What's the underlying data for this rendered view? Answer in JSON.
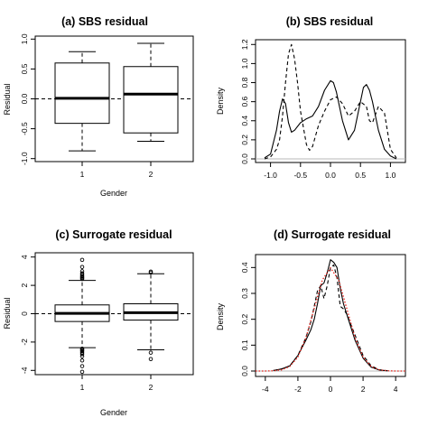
{
  "chart_data": [
    {
      "panel": "a",
      "type": "box",
      "title": "(a) SBS residual",
      "xlabel": "Gender",
      "ylabel": "Residual",
      "categories": [
        "1",
        "2"
      ],
      "ylim": [
        -1.05,
        1.05
      ],
      "yticks": [
        -1.0,
        -0.5,
        0.0,
        0.5,
        1.0
      ],
      "ytick_labels": [
        "-1.0",
        "-0.5",
        "0.0",
        "0.5",
        "1.0"
      ],
      "reference_line": 0,
      "boxes": [
        {
          "category": "1",
          "whisker_low": -0.87,
          "q1": -0.41,
          "median": 0.01,
          "q3": 0.6,
          "whisker_high": 0.79,
          "outliers": []
        },
        {
          "category": "2",
          "whisker_low": -0.71,
          "q1": -0.57,
          "median": 0.08,
          "q3": 0.54,
          "whisker_high": 0.93,
          "outliers": []
        }
      ]
    },
    {
      "panel": "b",
      "type": "line",
      "title": "(b) SBS residual",
      "xlabel": "",
      "ylabel": "Density",
      "xlim": [
        -1.25,
        1.25
      ],
      "ylim": [
        0,
        1.25
      ],
      "xticks": [
        -1.0,
        -0.5,
        0.0,
        0.5,
        1.0
      ],
      "xtick_labels": [
        "-1.0",
        "-0.5",
        "0.0",
        "0.5",
        "1.0"
      ],
      "yticks": [
        0.0,
        0.2,
        0.4,
        0.6,
        0.8,
        1.0,
        1.2
      ],
      "ytick_labels": [
        "0.0",
        "0.2",
        "0.4",
        "0.6",
        "0.8",
        "1.0",
        "1.2"
      ],
      "series": [
        {
          "style": "solid",
          "color": "#000000",
          "x": [
            -1.1,
            -1.0,
            -0.9,
            -0.85,
            -0.8,
            -0.75,
            -0.7,
            -0.65,
            -0.6,
            -0.5,
            -0.4,
            -0.3,
            -0.2,
            -0.1,
            0.0,
            0.05,
            0.1,
            0.2,
            0.3,
            0.4,
            0.5,
            0.55,
            0.6,
            0.65,
            0.7,
            0.8,
            0.9,
            1.0,
            1.1
          ],
          "y": [
            0.01,
            0.05,
            0.3,
            0.5,
            0.63,
            0.58,
            0.38,
            0.28,
            0.3,
            0.38,
            0.42,
            0.45,
            0.55,
            0.72,
            0.82,
            0.8,
            0.7,
            0.4,
            0.2,
            0.3,
            0.6,
            0.75,
            0.78,
            0.72,
            0.6,
            0.3,
            0.1,
            0.03,
            0.0
          ]
        },
        {
          "style": "dashed",
          "color": "#000000",
          "x": [
            -1.1,
            -1.0,
            -0.9,
            -0.85,
            -0.8,
            -0.75,
            -0.7,
            -0.65,
            -0.6,
            -0.55,
            -0.5,
            -0.4,
            -0.35,
            -0.3,
            -0.2,
            -0.1,
            0.0,
            0.1,
            0.2,
            0.3,
            0.4,
            0.5,
            0.6,
            0.65,
            0.7,
            0.8,
            0.9,
            1.0,
            1.1
          ],
          "y": [
            0.0,
            0.02,
            0.1,
            0.2,
            0.45,
            0.8,
            1.1,
            1.2,
            1.05,
            0.8,
            0.5,
            0.15,
            0.09,
            0.13,
            0.35,
            0.5,
            0.62,
            0.65,
            0.58,
            0.45,
            0.5,
            0.6,
            0.55,
            0.4,
            0.38,
            0.55,
            0.48,
            0.1,
            0.01
          ]
        }
      ]
    },
    {
      "panel": "c",
      "type": "box",
      "title": "(c) Surrogate residual",
      "xlabel": "Gender",
      "ylabel": "Residual",
      "categories": [
        "1",
        "2"
      ],
      "ylim": [
        -4.3,
        4.3
      ],
      "yticks": [
        -4,
        -2,
        0,
        2,
        4
      ],
      "ytick_labels": [
        "-4",
        "-2",
        "0",
        "2",
        "4"
      ],
      "reference_line": 0,
      "boxes": [
        {
          "category": "1",
          "whisker_low": -2.4,
          "q1": -0.55,
          "median": 0.02,
          "q3": 0.62,
          "whisker_high": 2.35,
          "outliers": [
            -4.1,
            -3.7,
            -3.3,
            -3.0,
            -2.85,
            -2.75,
            -2.65,
            -2.58,
            -2.52,
            -2.47,
            2.45,
            2.52,
            2.58,
            2.65,
            2.75,
            2.85,
            3.0,
            3.3,
            3.8
          ]
        },
        {
          "category": "2",
          "whisker_low": -2.55,
          "q1": -0.45,
          "median": 0.07,
          "q3": 0.7,
          "whisker_high": 2.82,
          "outliers": [
            -3.2,
            -2.75,
            2.9,
            2.97
          ]
        }
      ]
    },
    {
      "panel": "d",
      "type": "line",
      "title": "(d) Surrogate residual",
      "xlabel": "",
      "ylabel": "Density",
      "xlim": [
        -4.6,
        4.6
      ],
      "ylim": [
        0,
        0.45
      ],
      "xticks": [
        -4,
        -2,
        0,
        2,
        4
      ],
      "xtick_labels": [
        "-4",
        "-2",
        "0",
        "2",
        "4"
      ],
      "yticks": [
        0.0,
        0.1,
        0.2,
        0.3,
        0.4
      ],
      "ytick_labels": [
        "0.0",
        "0.1",
        "0.2",
        "0.3",
        "0.4"
      ],
      "series": [
        {
          "style": "solid",
          "color": "#000000",
          "x": [
            -3.5,
            -3,
            -2.5,
            -2,
            -1.5,
            -1.2,
            -1,
            -0.8,
            -0.6,
            -0.4,
            -0.2,
            0,
            0.2,
            0.4,
            0.6,
            0.8,
            1,
            1.5,
            2,
            2.5,
            3,
            3.5
          ],
          "y": [
            0.002,
            0.008,
            0.02,
            0.06,
            0.12,
            0.16,
            0.2,
            0.26,
            0.33,
            0.34,
            0.38,
            0.43,
            0.42,
            0.4,
            0.32,
            0.26,
            0.22,
            0.12,
            0.05,
            0.015,
            0.004,
            0.001
          ]
        },
        {
          "style": "dashed",
          "color": "#000000",
          "x": [
            -3.5,
            -3,
            -2.5,
            -2,
            -1.5,
            -1.2,
            -1,
            -0.8,
            -0.6,
            -0.4,
            -0.2,
            0,
            0.2,
            0.4,
            0.6,
            0.8,
            1,
            1.5,
            2,
            2.5,
            3,
            3.5
          ],
          "y": [
            0.002,
            0.008,
            0.02,
            0.06,
            0.13,
            0.19,
            0.25,
            0.31,
            0.33,
            0.28,
            0.33,
            0.4,
            0.41,
            0.36,
            0.25,
            0.24,
            0.22,
            0.14,
            0.06,
            0.02,
            0.005,
            0.001
          ]
        },
        {
          "style": "dotted",
          "color": "#e8231c",
          "formula": "normal(0,1) density",
          "x": [
            -4.6,
            -4.0,
            -3.5,
            -3.0,
            -2.5,
            -2.0,
            -1.5,
            -1.0,
            -0.5,
            0.0,
            0.5,
            1.0,
            1.5,
            2.0,
            2.5,
            3.0,
            3.5,
            4.0,
            4.6
          ],
          "y": [
            0.0,
            0.0001,
            0.0009,
            0.0044,
            0.0175,
            0.054,
            0.1295,
            0.242,
            0.3521,
            0.3989,
            0.3521,
            0.242,
            0.1295,
            0.054,
            0.0175,
            0.0044,
            0.0009,
            0.0001,
            0.0
          ]
        }
      ]
    }
  ]
}
